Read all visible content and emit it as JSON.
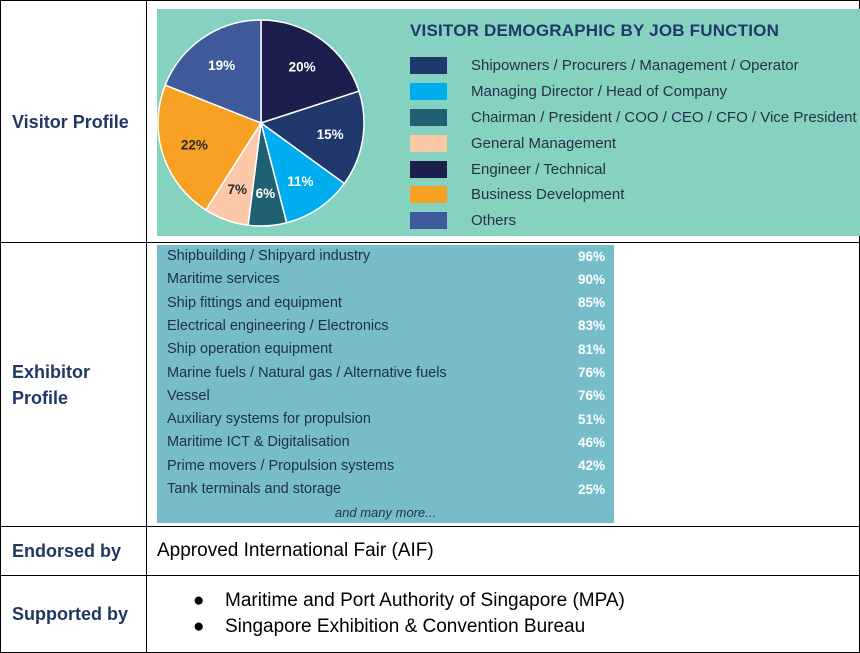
{
  "rows": {
    "visitor_label": "Visitor Profile",
    "exhibitor_label": "Exhibitor Profile",
    "endorsed_label": "Endorsed by",
    "endorsed_value": "Approved International Fair (AIF)",
    "supported_label": "Supported by",
    "supported_items": [
      "Maritime and Port Authority of Singapore (MPA)",
      "Singapore Exhibition & Convention Bureau"
    ]
  },
  "visitor": {
    "title": "VISITOR DEMOGRAPHIC BY JOB FUNCTION",
    "legend": [
      {
        "label": "Shipowners / Procurers / Management / Operator",
        "color": "#20386b"
      },
      {
        "label": "Managing Director / Head of Company",
        "color": "#00adef"
      },
      {
        "label": "Chairman / President / COO / CEO / CFO / Vice President",
        "color": "#215f73"
      },
      {
        "label": "General Management",
        "color": "#fbc8a8"
      },
      {
        "label": "Engineer / Technical",
        "color": "#1c1f4c"
      },
      {
        "label": "Business Development",
        "color": "#f6a124"
      },
      {
        "label": "Others",
        "color": "#3f5a9a"
      }
    ]
  },
  "chart_data": {
    "type": "pie",
    "title": "VISITOR DEMOGRAPHIC BY JOB FUNCTION",
    "legend_position": "right",
    "slices": [
      {
        "label": "Engineer / Technical",
        "value": 20,
        "display": "20%",
        "color": "#1c1f4c"
      },
      {
        "label": "Shipowners / Procurers / Management / Operator",
        "value": 15,
        "display": "15%",
        "color": "#20386b"
      },
      {
        "label": "Managing Director / Head of Company",
        "value": 11,
        "display": "11%",
        "color": "#00adef"
      },
      {
        "label": "Chairman / President / COO / CEO / CFO / Vice President",
        "value": 6,
        "display": "6%",
        "color": "#215f73"
      },
      {
        "label": "General Management",
        "value": 7,
        "display": "7%",
        "color": "#fbc8a8"
      },
      {
        "label": "Business Development",
        "value": 22,
        "display": "22%",
        "color": "#f6a124"
      },
      {
        "label": "Others",
        "value": 19,
        "display": "19%",
        "color": "#3f5a9a"
      }
    ]
  },
  "exhibitor": {
    "items": [
      {
        "label": "Shipbuilding / Shipyard industry",
        "value": "96%"
      },
      {
        "label": "Maritime services",
        "value": "90%"
      },
      {
        "label": "Ship fittings and equipment",
        "value": "85%"
      },
      {
        "label": "Electrical engineering / Electronics",
        "value": "83%"
      },
      {
        "label": "Ship operation equipment",
        "value": "81%"
      },
      {
        "label": "Marine fuels / Natural gas / Alternative fuels",
        "value": "76%"
      },
      {
        "label": "Vessel",
        "value": "76%"
      },
      {
        "label": "Auxiliary systems for propulsion",
        "value": "51%"
      },
      {
        "label": "Maritime ICT & Digitalisation",
        "value": "46%"
      },
      {
        "label": "Prime movers / Propulsion systems",
        "value": "42%"
      },
      {
        "label": "Tank terminals and storage",
        "value": "25%"
      }
    ],
    "more": "and many more..."
  }
}
